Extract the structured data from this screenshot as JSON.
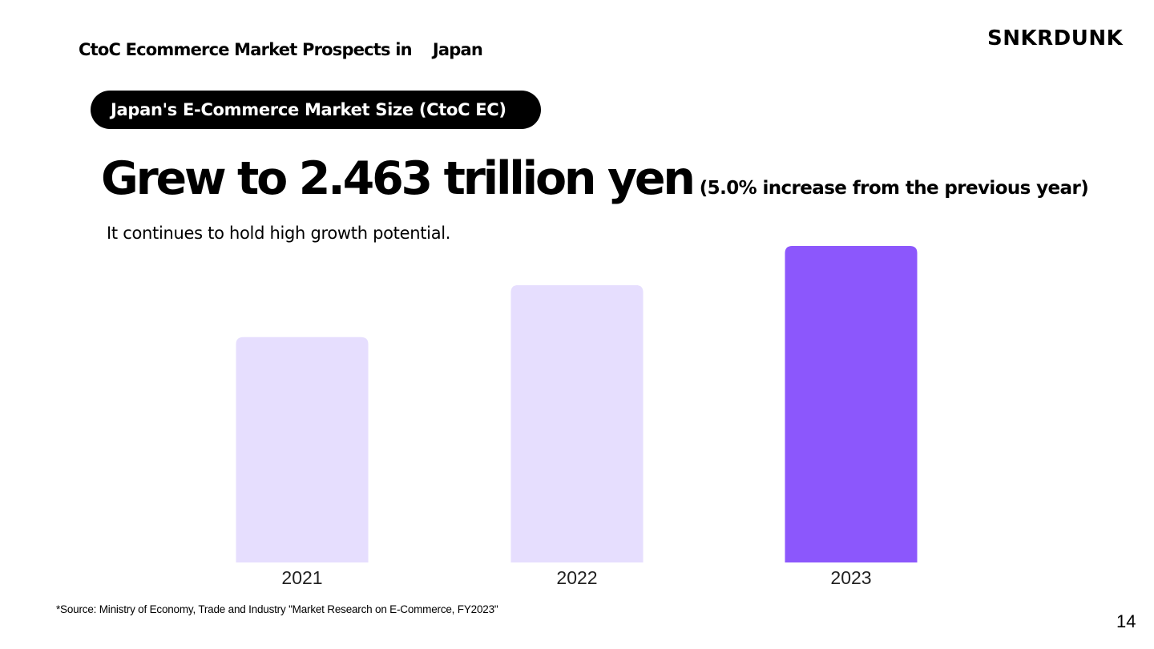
{
  "header": {
    "title": "CtoC Ecommerce Market Prospects in    Japan",
    "logo_text": "SNKRDUNK"
  },
  "section_label": "Japan's E-Commerce Market Size (CtoC EC)",
  "headline": {
    "main": "Grew to 2.463 trillion yen",
    "note": "(5.0% increase from the previous year)"
  },
  "subtext": "It continues to hold high growth potential.",
  "chart_data": {
    "type": "bar",
    "categories": [
      "2021",
      "2022",
      "2023"
    ],
    "values": [
      2.2,
      2.35,
      2.463
    ],
    "value_unit": "trillion yen",
    "title": "",
    "xlabel": "",
    "ylabel": "",
    "ylim": [
      1.55,
      2.463
    ],
    "grid": false,
    "legend": "none",
    "colors": [
      "#e6defe",
      "#e6defe",
      "#8c57fc"
    ]
  },
  "footer": {
    "source": "*Source: Ministry of Economy, Trade and Industry \"Market Research on E-Commerce, FY2023\"",
    "page_number": "14"
  }
}
